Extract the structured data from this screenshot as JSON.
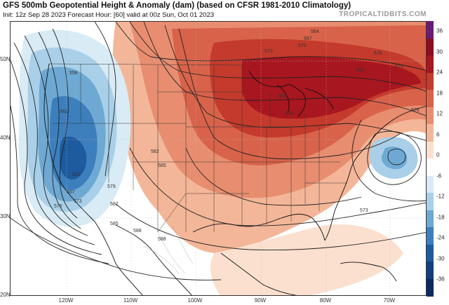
{
  "header": {
    "title": "GFS 500mb Geopotential Height & Anomaly (dam) (based on CFSR 1981-2010 Climatology)",
    "subtitle": "Init: 12z Sep 28 2023   Forecast Hour: [60]   valid at 00z Sun, Oct 01 2023",
    "brand": "TROPICALTIDBITS.COM"
  },
  "lat_labels": [
    "50N",
    "40N",
    "30N",
    "20N"
  ],
  "lon_labels": [
    "120W",
    "110W",
    "100W",
    "90W",
    "80W",
    "70W"
  ],
  "colorbar": {
    "labels": [
      "36",
      "30",
      "24",
      "18",
      "12",
      "6",
      "0",
      "-6",
      "-12",
      "-18",
      "-24",
      "-30",
      "-36"
    ],
    "colors": [
      "#6b1a7a",
      "#8b0d1f",
      "#a8161f",
      "#c43a2c",
      "#d8634a",
      "#e88d6f",
      "#f4b698",
      "#fbe0cf",
      "#ffffff",
      "#d9ebf5",
      "#a9d0e8",
      "#6ea9d3",
      "#3d7fbd",
      "#1d5a9e",
      "#12407e",
      "#0b2a5e"
    ]
  },
  "contour_labels": [
    {
      "text": "558"
    },
    {
      "text": "561"
    },
    {
      "text": "561"
    },
    {
      "text": "567"
    },
    {
      "text": "573"
    },
    {
      "text": "576"
    },
    {
      "text": "579"
    },
    {
      "text": "582"
    },
    {
      "text": "582"
    },
    {
      "text": "585"
    },
    {
      "text": "585"
    },
    {
      "text": "588"
    },
    {
      "text": "588"
    },
    {
      "text": "564"
    },
    {
      "text": "567"
    },
    {
      "text": "570"
    },
    {
      "text": "573"
    },
    {
      "text": "576"
    },
    {
      "text": "579"
    },
    {
      "text": "582"
    },
    {
      "text": "585"
    },
    {
      "text": "579"
    },
    {
      "text": "576"
    },
    {
      "text": "573"
    }
  ]
}
